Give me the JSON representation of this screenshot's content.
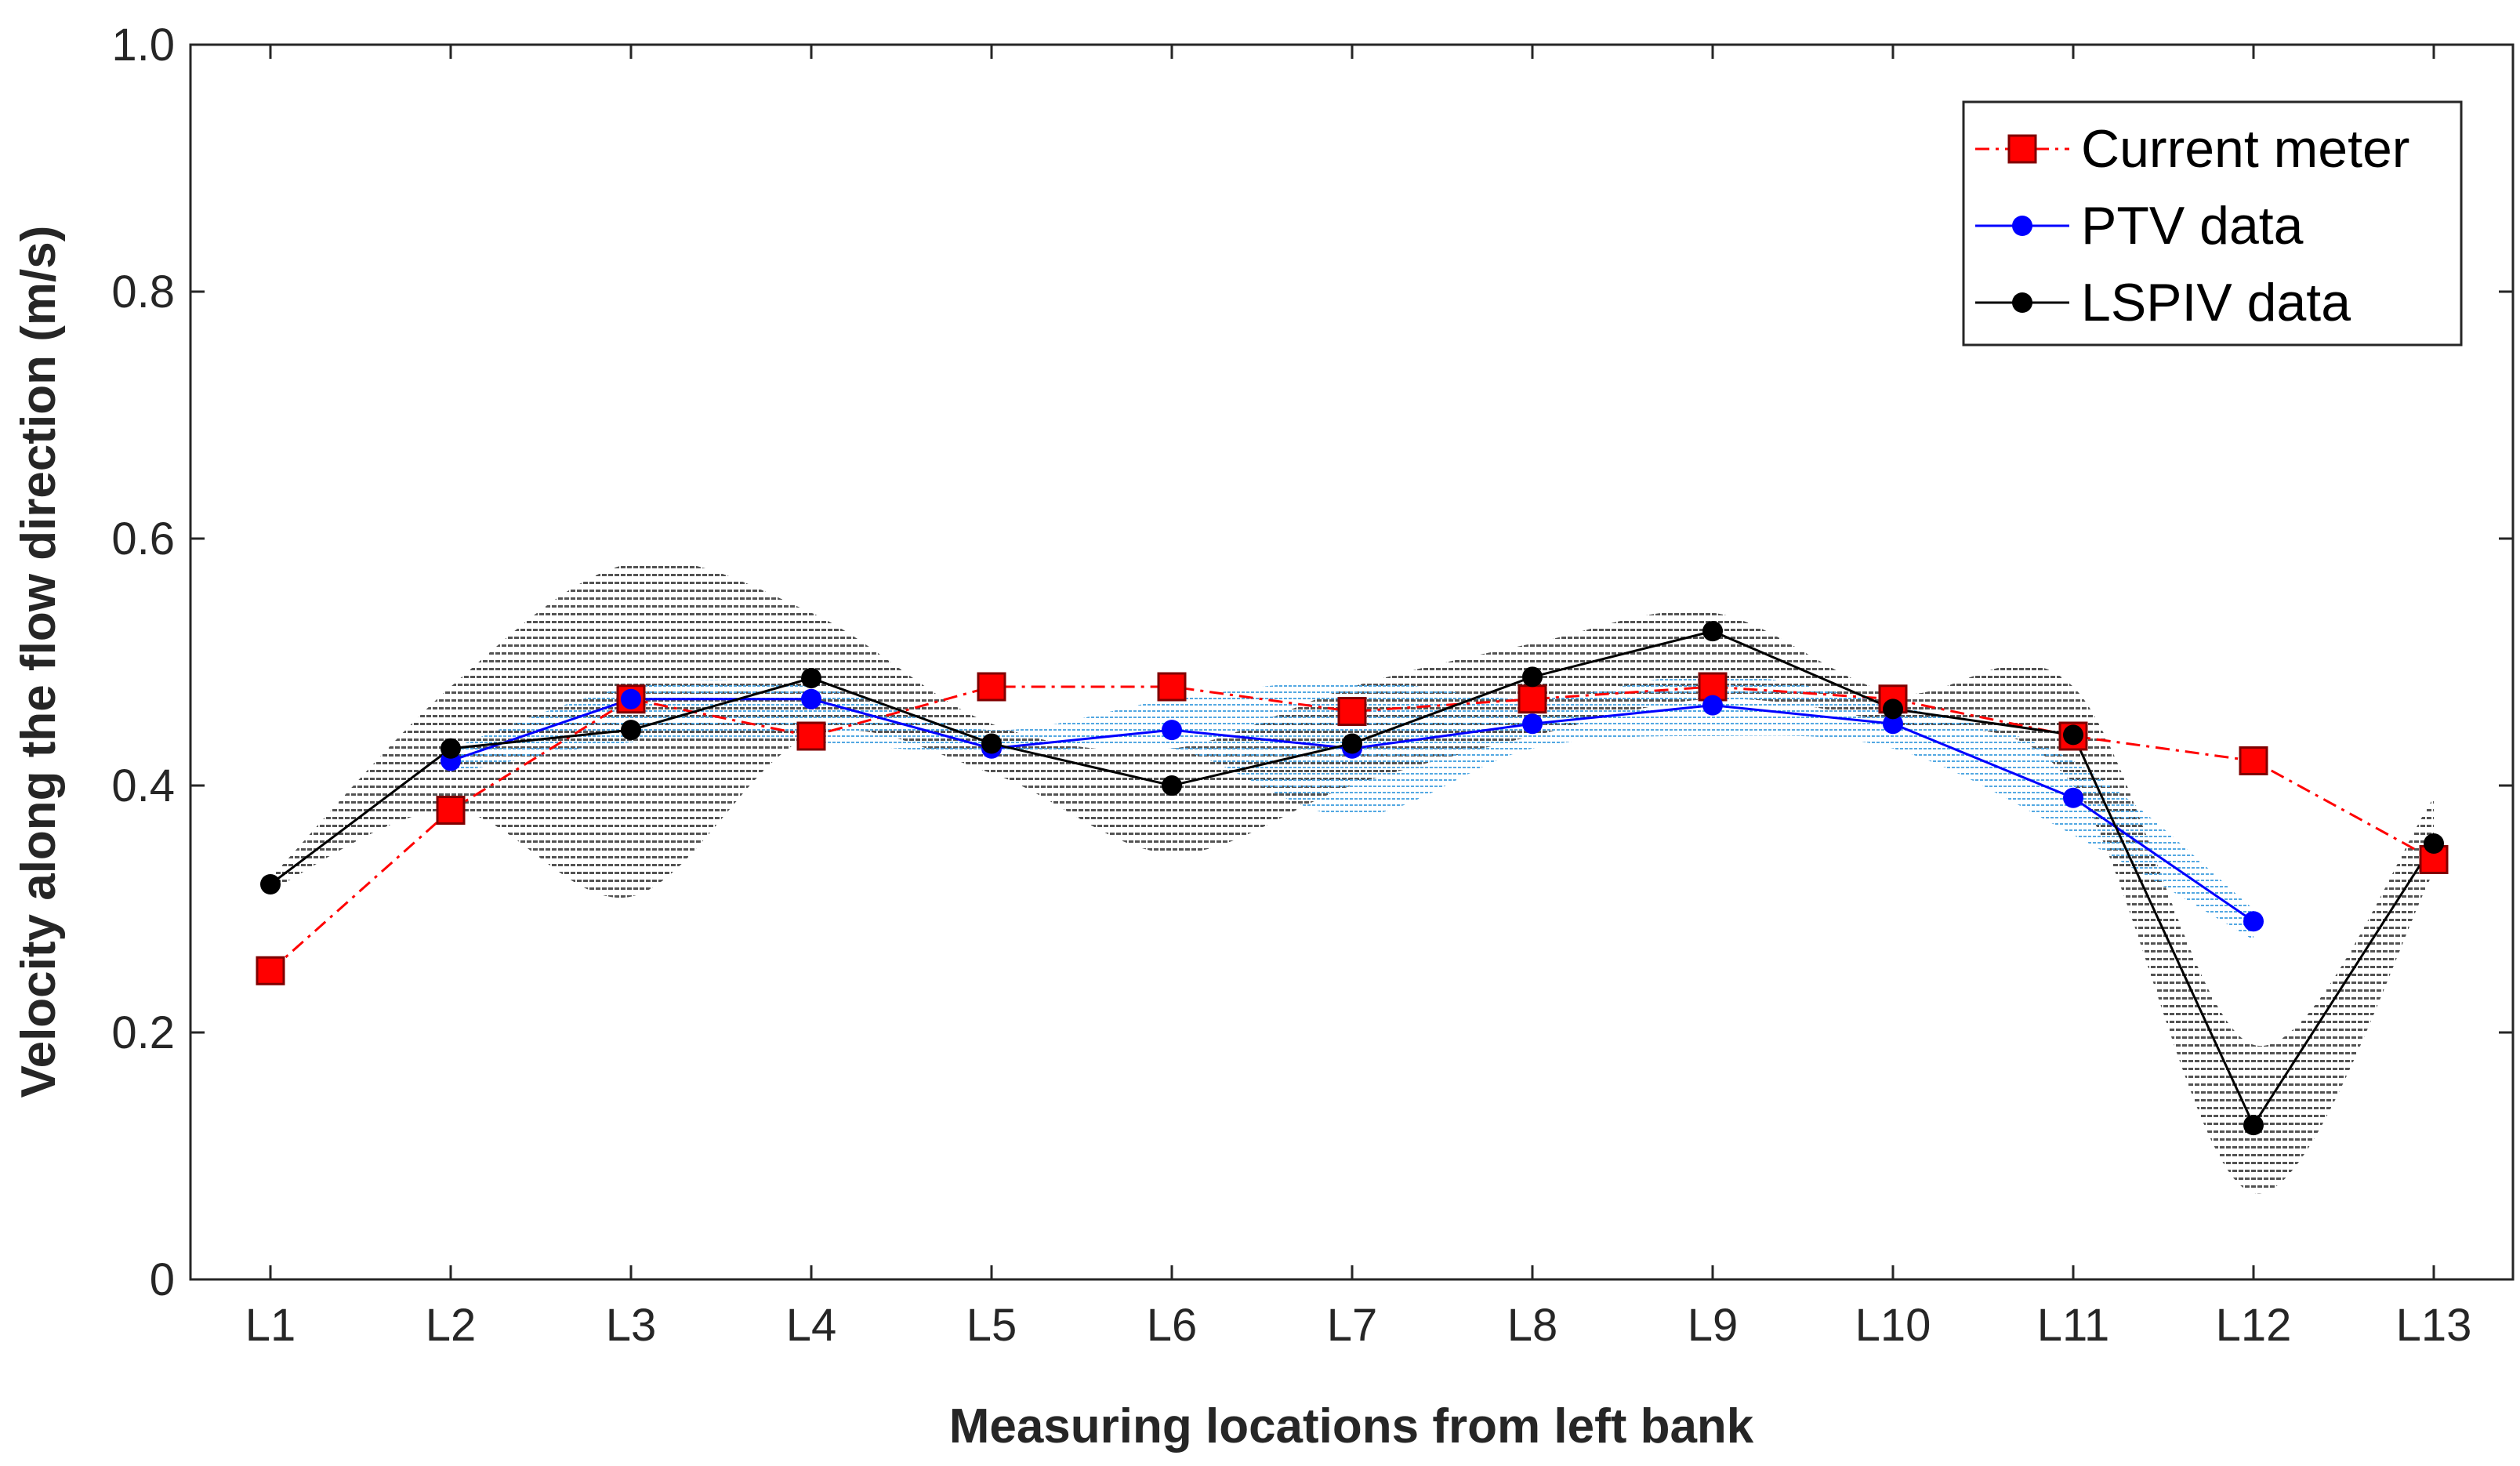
{
  "chart_data": {
    "type": "line",
    "title": "",
    "xlabel": "Measuring locations from left bank",
    "ylabel": "Velocity along the flow direction (m/s)",
    "ylim": [
      0,
      1.0
    ],
    "yticks": [
      "0",
      "0.2",
      "0.4",
      "0.6",
      "0.8",
      "1.0"
    ],
    "ytick_values": [
      0,
      0.2,
      0.4,
      0.6,
      0.8,
      1.0
    ],
    "categories": [
      "L1",
      "L2",
      "L3",
      "L4",
      "L5",
      "L6",
      "L7",
      "L8",
      "L9",
      "L10",
      "L11",
      "L12",
      "L13"
    ],
    "legend_position": "top-right",
    "series": [
      {
        "name": "Current meter",
        "color": "#ff0000",
        "marker": "square",
        "line_style": "dash-dot",
        "values": [
          0.25,
          0.38,
          0.47,
          0.44,
          0.48,
          0.48,
          0.46,
          0.47,
          0.48,
          0.47,
          0.44,
          0.42,
          0.34
        ]
      },
      {
        "name": "PTV data",
        "color": "#0000ff",
        "marker": "circle",
        "line_style": "solid",
        "values": [
          null,
          0.42,
          0.47,
          0.47,
          0.43,
          0.445,
          0.43,
          0.45,
          0.465,
          0.45,
          0.39,
          0.29,
          null
        ],
        "band_color": "#5aa9e6",
        "band_lower": [
          null,
          0.41,
          0.435,
          0.435,
          0.425,
          0.43,
          0.375,
          0.43,
          0.44,
          0.43,
          0.36,
          0.275,
          null
        ],
        "band_upper": [
          null,
          0.43,
          0.48,
          0.48,
          0.445,
          0.47,
          0.485,
          0.47,
          0.49,
          0.465,
          0.42,
          0.3,
          null
        ]
      },
      {
        "name": "LSPIV data",
        "color": "#000000",
        "marker": "circle",
        "line_style": "solid",
        "values": [
          0.32,
          0.43,
          0.445,
          0.487,
          0.434,
          0.4,
          0.434,
          0.488,
          0.525,
          0.462,
          0.441,
          0.125,
          0.353
        ],
        "band_color": "#555555",
        "band_lower": [
          0.315,
          0.38,
          0.31,
          0.44,
          0.41,
          0.345,
          0.4,
          0.44,
          0.47,
          0.45,
          0.4,
          0.07,
          0.33
        ],
        "band_upper": [
          0.325,
          0.48,
          0.58,
          0.54,
          0.45,
          0.43,
          0.48,
          0.515,
          0.54,
          0.475,
          0.48,
          0.19,
          0.39
        ]
      }
    ]
  }
}
